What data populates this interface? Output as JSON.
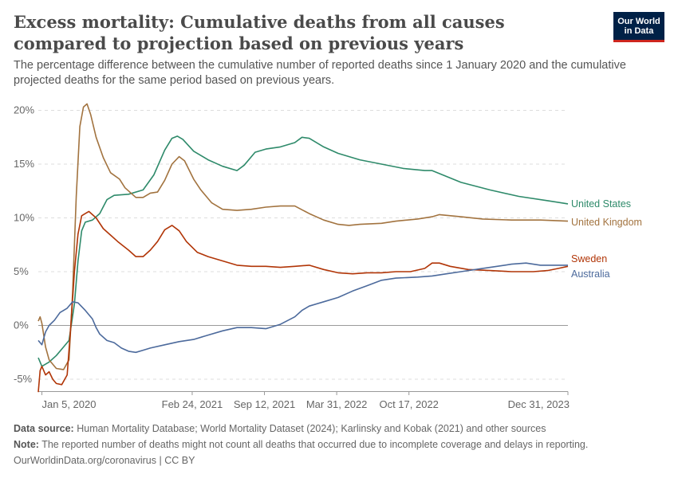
{
  "title": "Excess mortality: Cumulative deaths from all causes compared to projection based on previous years",
  "subtitle": "The percentage difference between the cumulative number of reported deaths since 1 January 2020 and the cumulative projected deaths for the same period based on previous years.",
  "logo": {
    "line1": "Our World",
    "line2": "in Data",
    "colors": {
      "background": "#002147",
      "accent": "#ce261e"
    }
  },
  "footer": {
    "source_label": "Data source:",
    "source_text": "Human Mortality Database; World Mortality Dataset (2024); Karlinsky and Kobak (2021) and other sources",
    "note_label": "Note:",
    "note_text": "The reported number of deaths might not count all deaths that occurred due to incomplete coverage and delays in reporting.",
    "license": "OurWorldinData.org/coronavirus | CC BY"
  },
  "chart_data": {
    "type": "line",
    "title": "Excess mortality: Cumulative deaths from all causes compared to projection based on previous years",
    "xlabel": "",
    "ylabel": "",
    "x_ticks": [
      {
        "label": "Jan 5, 2020",
        "t": 0
      },
      {
        "label": "Feb 24, 2021",
        "t": 416
      },
      {
        "label": "Sep 12, 2021",
        "t": 616
      },
      {
        "label": "Mar 31, 2022",
        "t": 816
      },
      {
        "label": "Oct 17, 2022",
        "t": 1016
      },
      {
        "label": "Dec 31, 2023",
        "t": 1456
      }
    ],
    "x_unit": "days since Jan 5, 2020",
    "xlim": [
      -10,
      1456
    ],
    "y_ticks": [
      -5,
      0,
      5,
      10,
      15,
      20
    ],
    "y_tick_format": "%",
    "ylim": [
      -6.5,
      21
    ],
    "grid": "horizontal dashed",
    "legend": "labels at line ends (right)",
    "series": [
      {
        "name": "United States",
        "color": "#2e8a6a",
        "points": [
          [
            -10,
            -3.0
          ],
          [
            0,
            -3.8
          ],
          [
            20,
            -3.4
          ],
          [
            40,
            -2.8
          ],
          [
            60,
            -2.0
          ],
          [
            75,
            -1.4
          ],
          [
            90,
            2.0
          ],
          [
            100,
            6.0
          ],
          [
            110,
            8.8
          ],
          [
            120,
            9.6
          ],
          [
            140,
            9.8
          ],
          [
            160,
            10.4
          ],
          [
            180,
            11.7
          ],
          [
            200,
            12.1
          ],
          [
            240,
            12.2
          ],
          [
            280,
            12.6
          ],
          [
            310,
            14.0
          ],
          [
            340,
            16.3
          ],
          [
            360,
            17.4
          ],
          [
            375,
            17.6
          ],
          [
            390,
            17.3
          ],
          [
            420,
            16.2
          ],
          [
            460,
            15.4
          ],
          [
            500,
            14.8
          ],
          [
            540,
            14.4
          ],
          [
            560,
            14.9
          ],
          [
            590,
            16.1
          ],
          [
            620,
            16.4
          ],
          [
            660,
            16.6
          ],
          [
            700,
            17.0
          ],
          [
            720,
            17.5
          ],
          [
            740,
            17.4
          ],
          [
            780,
            16.6
          ],
          [
            820,
            16.0
          ],
          [
            880,
            15.4
          ],
          [
            940,
            15.0
          ],
          [
            1000,
            14.6
          ],
          [
            1060,
            14.4
          ],
          [
            1080,
            14.4
          ],
          [
            1160,
            13.3
          ],
          [
            1240,
            12.6
          ],
          [
            1320,
            12.0
          ],
          [
            1400,
            11.6
          ],
          [
            1456,
            11.3
          ]
        ]
      },
      {
        "name": "United Kingdom",
        "color": "#a2733f",
        "points": [
          [
            -10,
            0.4
          ],
          [
            -5,
            0.8
          ],
          [
            0,
            0.2
          ],
          [
            10,
            -2.0
          ],
          [
            20,
            -3.2
          ],
          [
            40,
            -4.0
          ],
          [
            60,
            -4.1
          ],
          [
            75,
            -3.2
          ],
          [
            85,
            3.0
          ],
          [
            95,
            12.0
          ],
          [
            105,
            18.5
          ],
          [
            115,
            20.3
          ],
          [
            125,
            20.6
          ],
          [
            135,
            19.6
          ],
          [
            150,
            17.5
          ],
          [
            170,
            15.6
          ],
          [
            190,
            14.2
          ],
          [
            215,
            13.6
          ],
          [
            230,
            12.8
          ],
          [
            260,
            11.9
          ],
          [
            280,
            11.9
          ],
          [
            300,
            12.3
          ],
          [
            320,
            12.4
          ],
          [
            340,
            13.5
          ],
          [
            360,
            15.0
          ],
          [
            380,
            15.7
          ],
          [
            395,
            15.3
          ],
          [
            420,
            13.6
          ],
          [
            440,
            12.6
          ],
          [
            470,
            11.4
          ],
          [
            500,
            10.8
          ],
          [
            540,
            10.7
          ],
          [
            580,
            10.8
          ],
          [
            620,
            11.0
          ],
          [
            660,
            11.1
          ],
          [
            700,
            11.1
          ],
          [
            740,
            10.4
          ],
          [
            780,
            9.8
          ],
          [
            820,
            9.4
          ],
          [
            850,
            9.3
          ],
          [
            880,
            9.4
          ],
          [
            940,
            9.5
          ],
          [
            980,
            9.7
          ],
          [
            1040,
            9.9
          ],
          [
            1080,
            10.1
          ],
          [
            1100,
            10.3
          ],
          [
            1160,
            10.1
          ],
          [
            1220,
            9.9
          ],
          [
            1300,
            9.8
          ],
          [
            1380,
            9.8
          ],
          [
            1456,
            9.7
          ]
        ]
      },
      {
        "name": "Sweden",
        "color": "#b13507",
        "points": [
          [
            -10,
            -6.2
          ],
          [
            -5,
            -4.2
          ],
          [
            0,
            -3.8
          ],
          [
            10,
            -4.6
          ],
          [
            20,
            -4.3
          ],
          [
            30,
            -5.0
          ],
          [
            40,
            -5.4
          ],
          [
            55,
            -5.5
          ],
          [
            70,
            -4.6
          ],
          [
            80,
            0.0
          ],
          [
            90,
            5.0
          ],
          [
            100,
            8.5
          ],
          [
            110,
            10.2
          ],
          [
            120,
            10.4
          ],
          [
            130,
            10.6
          ],
          [
            150,
            10.0
          ],
          [
            170,
            9.0
          ],
          [
            190,
            8.4
          ],
          [
            210,
            7.8
          ],
          [
            240,
            7.0
          ],
          [
            260,
            6.4
          ],
          [
            280,
            6.4
          ],
          [
            300,
            7.0
          ],
          [
            320,
            7.8
          ],
          [
            340,
            8.9
          ],
          [
            360,
            9.3
          ],
          [
            380,
            8.8
          ],
          [
            400,
            7.8
          ],
          [
            430,
            6.8
          ],
          [
            460,
            6.4
          ],
          [
            500,
            6.0
          ],
          [
            540,
            5.6
          ],
          [
            580,
            5.5
          ],
          [
            620,
            5.5
          ],
          [
            660,
            5.4
          ],
          [
            700,
            5.5
          ],
          [
            740,
            5.6
          ],
          [
            780,
            5.2
          ],
          [
            820,
            4.9
          ],
          [
            860,
            4.8
          ],
          [
            900,
            4.9
          ],
          [
            940,
            4.9
          ],
          [
            980,
            5.0
          ],
          [
            1020,
            5.0
          ],
          [
            1060,
            5.3
          ],
          [
            1080,
            5.8
          ],
          [
            1100,
            5.8
          ],
          [
            1130,
            5.5
          ],
          [
            1180,
            5.2
          ],
          [
            1240,
            5.1
          ],
          [
            1300,
            5.0
          ],
          [
            1360,
            5.0
          ],
          [
            1400,
            5.1
          ],
          [
            1430,
            5.3
          ],
          [
            1456,
            5.5
          ]
        ]
      },
      {
        "name": "Australia",
        "color": "#4c6a9c",
        "points": [
          [
            -10,
            -1.4
          ],
          [
            0,
            -1.8
          ],
          [
            10,
            -0.6
          ],
          [
            20,
            0.0
          ],
          [
            35,
            0.5
          ],
          [
            50,
            1.2
          ],
          [
            70,
            1.6
          ],
          [
            85,
            2.2
          ],
          [
            100,
            2.1
          ],
          [
            120,
            1.4
          ],
          [
            140,
            0.6
          ],
          [
            150,
            -0.2
          ],
          [
            160,
            -0.8
          ],
          [
            180,
            -1.4
          ],
          [
            200,
            -1.6
          ],
          [
            220,
            -2.1
          ],
          [
            240,
            -2.4
          ],
          [
            260,
            -2.5
          ],
          [
            280,
            -2.3
          ],
          [
            300,
            -2.1
          ],
          [
            340,
            -1.8
          ],
          [
            380,
            -1.5
          ],
          [
            420,
            -1.3
          ],
          [
            460,
            -0.9
          ],
          [
            500,
            -0.5
          ],
          [
            540,
            -0.2
          ],
          [
            580,
            -0.2
          ],
          [
            620,
            -0.3
          ],
          [
            660,
            0.1
          ],
          [
            700,
            0.8
          ],
          [
            720,
            1.4
          ],
          [
            740,
            1.8
          ],
          [
            780,
            2.2
          ],
          [
            820,
            2.6
          ],
          [
            860,
            3.2
          ],
          [
            900,
            3.7
          ],
          [
            940,
            4.2
          ],
          [
            980,
            4.4
          ],
          [
            1040,
            4.5
          ],
          [
            1080,
            4.6
          ],
          [
            1120,
            4.8
          ],
          [
            1160,
            5.0
          ],
          [
            1220,
            5.3
          ],
          [
            1260,
            5.5
          ],
          [
            1300,
            5.7
          ],
          [
            1340,
            5.8
          ],
          [
            1380,
            5.6
          ],
          [
            1420,
            5.6
          ],
          [
            1456,
            5.6
          ]
        ]
      }
    ]
  }
}
